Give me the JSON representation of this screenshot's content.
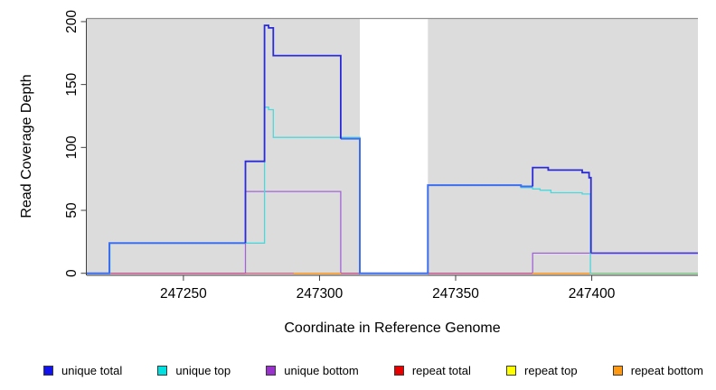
{
  "chart_data": {
    "type": "line",
    "title": "",
    "xlabel": "Coordinate in Reference Genome",
    "ylabel": "Read Coverage Depth",
    "x_range": [
      247214.5,
      247439
    ],
    "y_range": [
      0,
      202
    ],
    "x_ticks": [
      247250,
      247300,
      247350,
      247400
    ],
    "y_ticks": [
      0,
      50,
      100,
      150,
      200
    ],
    "grid": false,
    "legend_position": "bottom",
    "plot_background": "#ffffff",
    "shaded_regions": [
      {
        "name": "covered-region-left",
        "x0": 247214.5,
        "x1": 247314.8,
        "color": "#dcdcdc"
      },
      {
        "name": "covered-region-right",
        "x0": 247339.8,
        "x1": 247439,
        "color": "#dcdcdc"
      }
    ],
    "gap_region": {
      "x0": 247314.8,
      "x1": 247339.8,
      "color": "#ffffff"
    },
    "legend": [
      {
        "label": "unique total",
        "color": "#1212ee"
      },
      {
        "label": "unique top",
        "color": "#00e0e0"
      },
      {
        "label": "unique bottom",
        "color": "#9932cc"
      },
      {
        "label": "repeat total",
        "color": "#e80000"
      },
      {
        "label": "repeat top",
        "color": "#ffff00"
      },
      {
        "label": "repeat bottom",
        "color": "#ff9912"
      }
    ],
    "lines": [
      {
        "series": "unique bottom",
        "color": "#a263d6",
        "width": 1.3,
        "points": [
          [
            247214.5,
            0
          ],
          [
            247272.8,
            0
          ],
          [
            247272.8,
            65
          ],
          [
            247307.8,
            65
          ],
          [
            247307.8,
            0
          ],
          [
            247378.3,
            0
          ],
          [
            247378.3,
            16
          ],
          [
            247439,
            16
          ]
        ]
      },
      {
        "series": "repeat total",
        "color": "#d6527c",
        "width": 1.2,
        "points": [
          [
            247223,
            0
          ],
          [
            247399.5,
            0
          ]
        ]
      },
      {
        "series": "repeat bottom",
        "color": "#ff9a1e",
        "width": 1.5,
        "points": [
          [
            247290.5,
            0
          ],
          [
            247307.8,
            0
          ]
        ]
      },
      {
        "series": "repeat bottom",
        "color": "#ff9a1e",
        "width": 1.5,
        "points": [
          [
            247378.3,
            0
          ],
          [
            247399.5,
            0
          ]
        ]
      },
      {
        "series": "unique top",
        "color": "#4cd7db",
        "width": 1.3,
        "points": [
          [
            247214.5,
            0
          ],
          [
            247223,
            0
          ],
          [
            247223,
            24
          ],
          [
            247279.8,
            24
          ],
          [
            247279.8,
            132
          ],
          [
            247281.3,
            132
          ],
          [
            247281.3,
            130
          ],
          [
            247283,
            130
          ],
          [
            247283,
            108
          ],
          [
            247314.8,
            108
          ],
          [
            247314.8,
            0
          ],
          [
            247339.8,
            0
          ],
          [
            247339.8,
            70
          ],
          [
            247374,
            70
          ],
          [
            247374,
            68
          ],
          [
            247378.3,
            68
          ],
          [
            247378.3,
            67
          ],
          [
            247381,
            67
          ],
          [
            247381,
            66
          ],
          [
            247385,
            66
          ],
          [
            247385,
            64
          ],
          [
            247396.5,
            64
          ],
          [
            247396.5,
            63
          ],
          [
            247399.5,
            63
          ],
          [
            247399.5,
            0
          ],
          [
            247439,
            0
          ]
        ]
      },
      {
        "series": "repeat top",
        "color": "#84c984",
        "width": 1.4,
        "points": [
          [
            247400,
            0
          ],
          [
            247439,
            0
          ]
        ]
      },
      {
        "series": "unique total",
        "color": "#3c6ef0",
        "width": 2,
        "points": [
          [
            247214.5,
            0
          ],
          [
            247222.8,
            0
          ],
          [
            247222.8,
            24
          ],
          [
            247272.8,
            24
          ]
        ]
      },
      {
        "series": "unique total",
        "color": "#3c6ef0",
        "width": 2,
        "points": [
          [
            247307.8,
            107
          ],
          [
            247314.8,
            107
          ],
          [
            247314.8,
            0
          ],
          [
            247339.8,
            0
          ],
          [
            247339.8,
            70
          ],
          [
            247374,
            70
          ],
          [
            247374,
            69
          ],
          [
            247378.3,
            69
          ]
        ]
      },
      {
        "series": "unique total",
        "color": "#2a2ad8",
        "width": 1.8,
        "points": [
          [
            247272.8,
            24
          ],
          [
            247272.8,
            89
          ],
          [
            247279.8,
            89
          ],
          [
            247279.8,
            197
          ],
          [
            247281.3,
            197
          ],
          [
            247281.3,
            195
          ],
          [
            247283,
            195
          ],
          [
            247283,
            173
          ],
          [
            247307.8,
            173
          ],
          [
            247307.8,
            107
          ]
        ]
      },
      {
        "series": "unique total",
        "color": "#2a2ad8",
        "width": 1.8,
        "points": [
          [
            247378.3,
            69
          ],
          [
            247378.3,
            84
          ],
          [
            247384,
            84
          ],
          [
            247384,
            82
          ],
          [
            247396.5,
            82
          ],
          [
            247396.5,
            80
          ],
          [
            247399,
            80
          ],
          [
            247399,
            76
          ],
          [
            247399.7,
            76
          ],
          [
            247399.7,
            16
          ]
        ]
      },
      {
        "series": "unique total",
        "color": "#4a3ce0",
        "width": 1.8,
        "points": [
          [
            247399.7,
            16
          ],
          [
            247439,
            16
          ]
        ]
      }
    ]
  }
}
